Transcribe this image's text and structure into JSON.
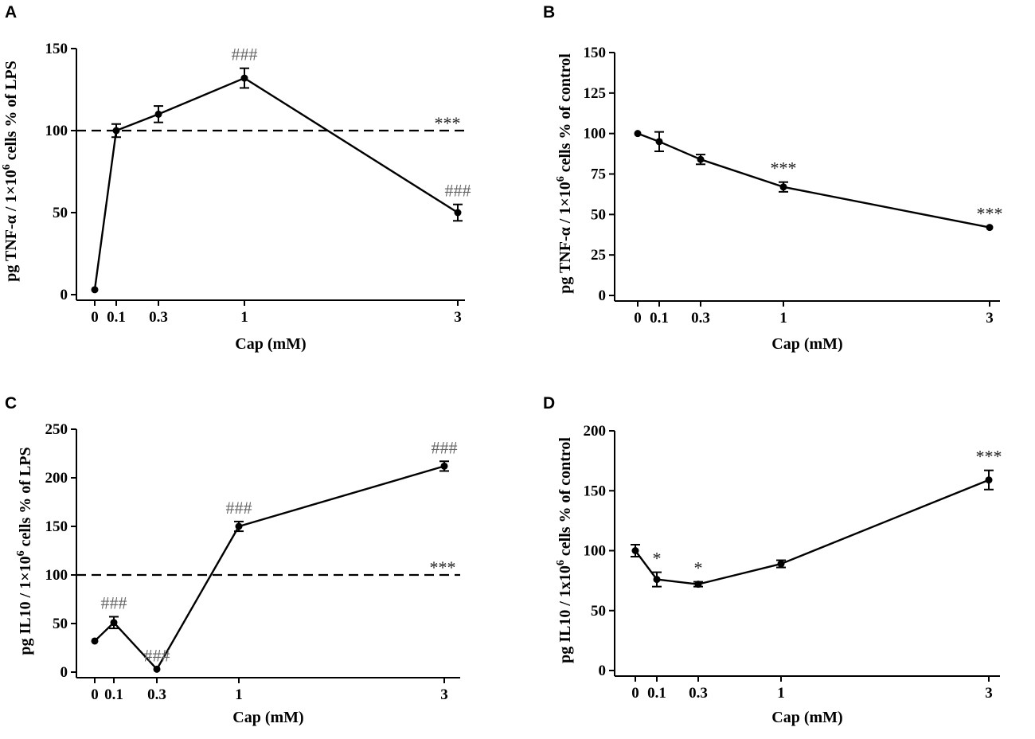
{
  "chart_data": [
    {
      "panel": "A",
      "type": "line",
      "xlabel": "Cap (mM)",
      "ylabel": "pg TNF-α / 1×10",
      "ylabel_sup": "6",
      "ylabel_tail": " cells % of LPS",
      "x": [
        "0",
        "0.1",
        "0.3",
        "1",
        "3"
      ],
      "values": [
        3,
        100,
        110,
        132,
        50
      ],
      "errors": [
        0,
        4,
        5,
        6,
        5
      ],
      "ylim": [
        0,
        150
      ],
      "yticks": [
        0,
        50,
        100,
        150
      ],
      "reference_line": {
        "value": 100,
        "label": "***"
      },
      "point_annotations": [
        {
          "index": 3,
          "text": "###"
        },
        {
          "index": 4,
          "text": "###"
        }
      ]
    },
    {
      "panel": "B",
      "type": "line",
      "xlabel": "Cap (mM)",
      "ylabel": "pg TNF-α / 1×10",
      "ylabel_sup": "6",
      "ylabel_tail": " cells % of control",
      "x": [
        "0",
        "0.1",
        "0.3",
        "1",
        "3"
      ],
      "values": [
        100,
        95,
        84,
        67,
        42
      ],
      "errors": [
        0,
        6,
        3,
        3,
        0
      ],
      "ylim": [
        0,
        150
      ],
      "yticks": [
        0,
        25,
        50,
        75,
        100,
        125,
        150
      ],
      "point_annotations": [
        {
          "index": 3,
          "text": "***"
        },
        {
          "index": 4,
          "text": "***"
        }
      ]
    },
    {
      "panel": "C",
      "type": "line",
      "xlabel": "Cap (mM)",
      "ylabel": "pg IL10 / 1×10",
      "ylabel_sup": "6",
      "ylabel_tail": " cells % of LPS",
      "x": [
        "0",
        "0.1",
        "0.3",
        "1",
        "3"
      ],
      "values": [
        32,
        51,
        3,
        150,
        212
      ],
      "errors": [
        0,
        6,
        0,
        5,
        5
      ],
      "ylim": [
        0,
        250
      ],
      "yticks": [
        0,
        50,
        100,
        150,
        200,
        250
      ],
      "reference_line": {
        "value": 100,
        "label": "***"
      },
      "point_annotations": [
        {
          "index": 1,
          "text": "###"
        },
        {
          "index": 2,
          "text": "###"
        },
        {
          "index": 3,
          "text": "###"
        },
        {
          "index": 4,
          "text": "###"
        }
      ]
    },
    {
      "panel": "D",
      "type": "line",
      "xlabel": "Cap (mM)",
      "ylabel": "pg IL10 / 1x10",
      "ylabel_sup": "6",
      "ylabel_tail": " cells % of control",
      "x": [
        "0",
        "0.1",
        "0.3",
        "1",
        "3"
      ],
      "values": [
        100,
        76,
        72,
        89,
        159
      ],
      "errors": [
        5,
        6,
        2,
        3,
        8
      ],
      "ylim": [
        0,
        200
      ],
      "yticks": [
        0,
        50,
        100,
        150,
        200
      ],
      "point_annotations": [
        {
          "index": 1,
          "text": "*"
        },
        {
          "index": 2,
          "text": "*"
        },
        {
          "index": 4,
          "text": "***"
        }
      ]
    }
  ]
}
